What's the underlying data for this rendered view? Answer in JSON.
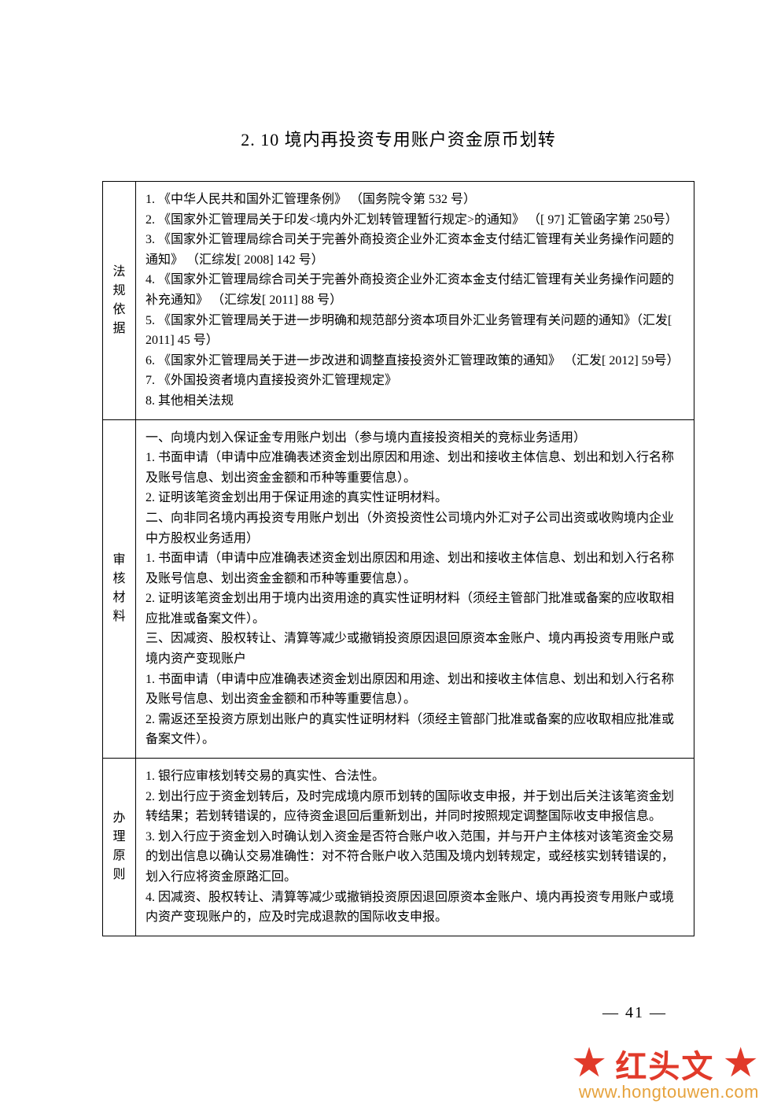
{
  "title": "2. 10 境内再投资专用账户资金原币划转",
  "page_number": "— 41 —",
  "watermark": {
    "text": "红头文",
    "star": "★",
    "url": "www.hongtouwen.com"
  },
  "colors": {
    "text": "#000000",
    "border": "#000000",
    "watermark": "#e13a2a",
    "url": "#e6a23c",
    "background": "#ffffff"
  },
  "typography": {
    "body_fontsize": 16,
    "title_fontsize": 22,
    "pagenum_fontsize": 20,
    "wm_text_fontsize": 40,
    "url_fontsize": 22
  },
  "table": {
    "rows": [
      {
        "label": "法规依据",
        "lines": [
          "1. 《中华人民共和国外汇管理条例》 （国务院令第 532 号）",
          "2. 《国家外汇管理局关于印发<境内外汇划转管理暂行规定>的通知》 （[ 97] 汇管函字第 250号）",
          "3. 《国家外汇管理局综合司关于完善外商投资企业外汇资本金支付结汇管理有关业务操作问题的通知》 （汇综发[ 2008] 142 号）",
          "4. 《国家外汇管理局综合司关于完善外商投资企业外汇资本金支付结汇管理有关业务操作问题的补充通知》 （汇综发[ 2011] 88 号）",
          "5. 《国家外汇管理局关于进一步明确和规范部分资本项目外汇业务管理有关问题的通知》（汇发[ 2011] 45 号）",
          "6. 《国家外汇管理局关于进一步改进和调整直接投资外汇管理政策的通知》 （汇发[ 2012] 59号）",
          "7. 《外国投资者境内直接投资外汇管理规定》",
          "8. 其他相关法规"
        ]
      },
      {
        "label": "审核材料",
        "lines": [
          "一、向境内划入保证金专用账户划出（参与境内直接投资相关的竞标业务适用）",
          "1. 书面申请（申请中应准确表述资金划出原因和用途、划出和接收主体信息、划出和划入行名称及账号信息、划出资金金额和币种等重要信息）。",
          "2. 证明该笔资金划出用于保证用途的真实性证明材料。",
          "二、向非同名境内再投资专用账户划出（外资投资性公司境内外汇对子公司出资或收购境内企业中方股权业务适用）",
          "1. 书面申请（申请中应准确表述资金划出原因和用途、划出和接收主体信息、划出和划入行名称及账号信息、划出资金金额和币种等重要信息）。",
          "2. 证明该笔资金划出用于境内出资用途的真实性证明材料（须经主管部门批准或备案的应收取相应批准或备案文件）。",
          "三、因减资、股权转让、清算等减少或撤销投资原因退回原资本金账户、境内再投资专用账户或境内资产变现账户",
          "1. 书面申请（申请中应准确表述资金划出原因和用途、划出和接收主体信息、划出和划入行名称及账号信息、划出资金金额和币种等重要信息）。",
          "2. 需返还至投资方原划出账户的真实性证明材料（须经主管部门批准或备案的应收取相应批准或备案文件）。"
        ]
      },
      {
        "label": "办理原则",
        "lines": [
          "1. 银行应审核划转交易的真实性、合法性。",
          "2. 划出行应于资金划转后，及时完成境内原币划转的国际收支申报，并于划出后关注该笔资金划转结果；若划转错误的，应待资金退回后重新划出，并同时按照规定调整国际收支申报信息。",
          "3. 划入行应于资金划入时确认划入资金是否符合账户收入范围，并与开户主体核对该笔资金交易的划出信息以确认交易准确性：对不符合账户收入范围及境内划转规定，或经核实划转错误的，划入行应将资金原路汇回。",
          "4. 因减资、股权转让、清算等减少或撤销投资原因退回原资本金账户、境内再投资专用账户或境内资产变现账户的，应及时完成退款的国际收支申报。"
        ]
      }
    ]
  }
}
